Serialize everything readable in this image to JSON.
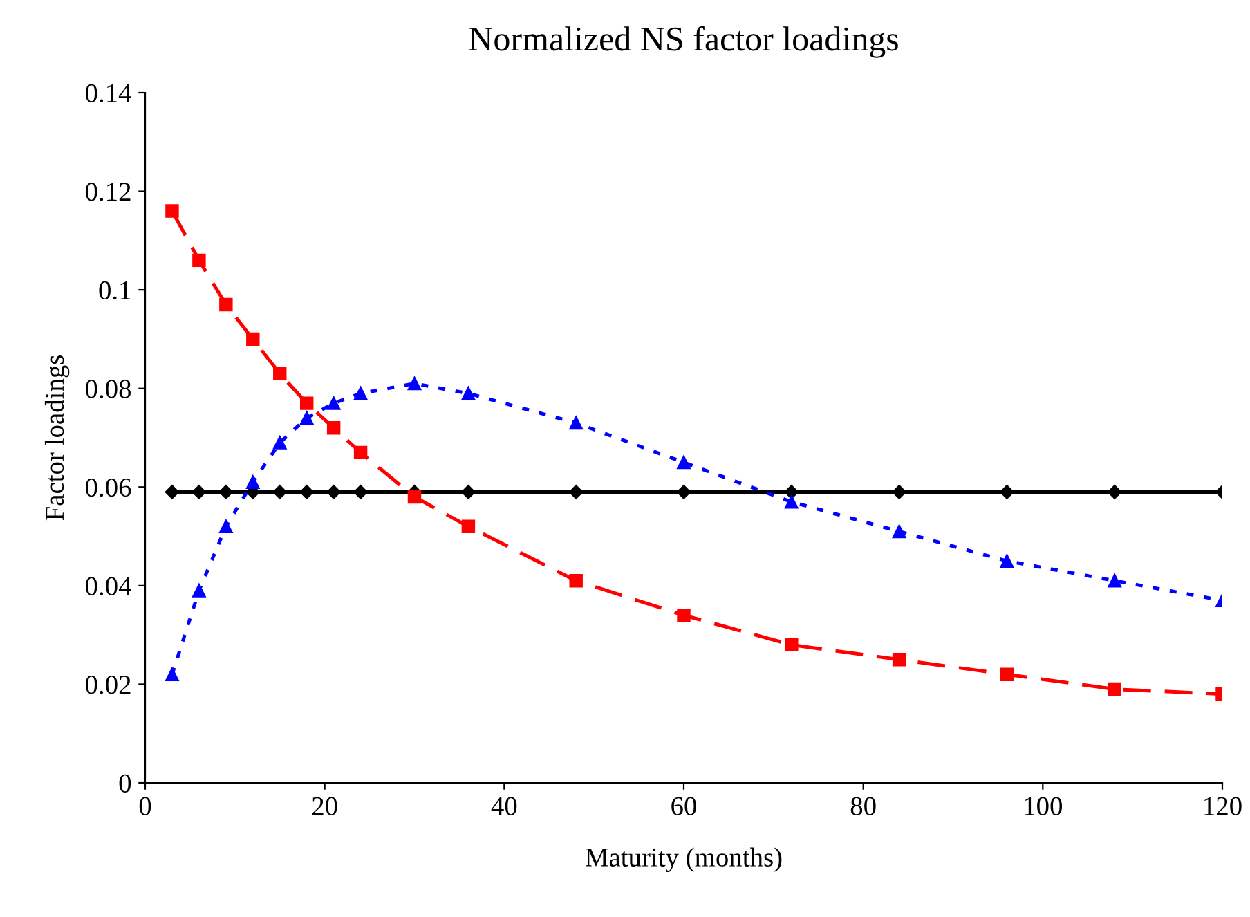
{
  "chart_data": {
    "type": "line",
    "title": "Normalized NS factor loadings",
    "xlabel": "Maturity (months)",
    "ylabel": "Factor loadings",
    "x": [
      3,
      6,
      9,
      12,
      15,
      18,
      21,
      24,
      30,
      36,
      48,
      60,
      72,
      84,
      96,
      108,
      120
    ],
    "xlim": [
      0,
      120
    ],
    "xticks": [
      0,
      20,
      40,
      60,
      80,
      100,
      120
    ],
    "ylim": [
      0,
      0.14
    ],
    "yticks": [
      {
        "value": 0,
        "label": "0"
      },
      {
        "value": 0.02,
        "label": "0.02"
      },
      {
        "value": 0.04,
        "label": "0.04"
      },
      {
        "value": 0.06,
        "label": "0.06"
      },
      {
        "value": 0.08,
        "label": "0.08"
      },
      {
        "value": 0.1,
        "label": "0.1"
      },
      {
        "value": 0.12,
        "label": "0.12"
      },
      {
        "value": 0.14,
        "label": "0.14"
      }
    ],
    "grid": false,
    "legend": false,
    "series": [
      {
        "color": "#000000",
        "marker": "diamond",
        "line_style": "solid",
        "values": [
          0.059,
          0.059,
          0.059,
          0.059,
          0.059,
          0.059,
          0.059,
          0.059,
          0.059,
          0.059,
          0.059,
          0.059,
          0.059,
          0.059,
          0.059,
          0.059,
          0.059
        ]
      },
      {
        "color": "#ff0000",
        "marker": "square",
        "line_style": "dashed",
        "values": [
          0.116,
          0.106,
          0.097,
          0.09,
          0.083,
          0.077,
          0.072,
          0.067,
          0.058,
          0.052,
          0.041,
          0.034,
          0.028,
          0.025,
          0.022,
          0.019,
          0.018
        ]
      },
      {
        "color": "#0000ff",
        "marker": "triangle",
        "line_style": "dotted",
        "values": [
          0.022,
          0.039,
          0.052,
          0.061,
          0.069,
          0.074,
          0.077,
          0.079,
          0.081,
          0.079,
          0.073,
          0.065,
          0.057,
          0.051,
          0.045,
          0.041,
          0.037
        ]
      }
    ]
  }
}
